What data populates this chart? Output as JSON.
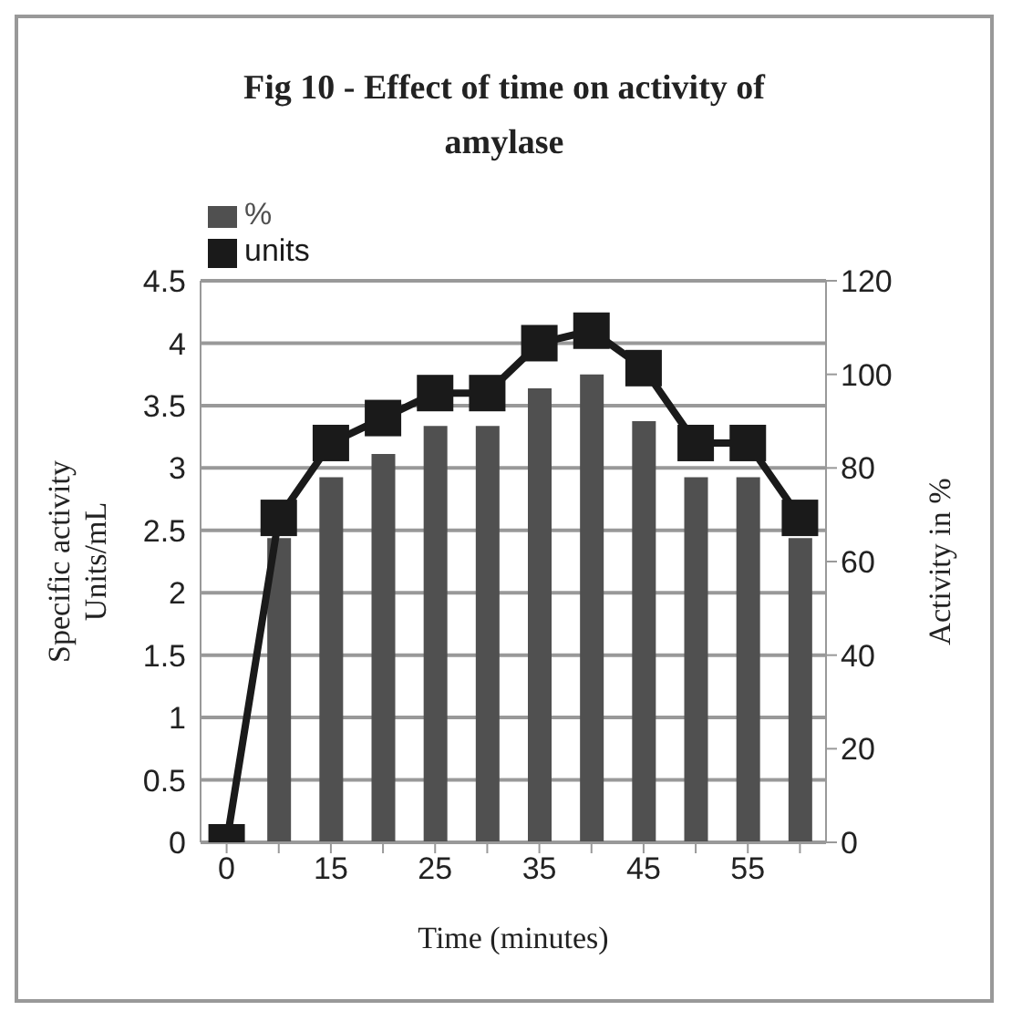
{
  "chart_data": {
    "type": "bar",
    "title": "Fig 10 - Effect of time on activity of amylase",
    "xlabel": "Time (minutes)",
    "ylabel": "Specific activity Units/mL",
    "y2label": "Activity in %",
    "categories": [
      "0",
      null,
      "15",
      null,
      "25",
      null,
      "35",
      null,
      "45",
      null,
      "55",
      null
    ],
    "series": [
      {
        "name": "%",
        "axis": "y2",
        "color": "#505050",
        "values": [
          0,
          65,
          78,
          83,
          89,
          89,
          97,
          100,
          90,
          78,
          78,
          65
        ]
      },
      {
        "name": "units",
        "type": "line",
        "color": "#1a1a1a",
        "marker": "square",
        "values": [
          0,
          2.6,
          3.2,
          3.4,
          3.6,
          3.6,
          4.0,
          4.1,
          3.8,
          3.2,
          3.2,
          2.6
        ]
      }
    ],
    "ylim": [
      0,
      4.5
    ],
    "yticks": [
      0,
      0.5,
      1,
      1.5,
      2,
      2.5,
      3,
      3.5,
      4,
      4.5
    ],
    "y2lim": [
      0,
      120
    ],
    "y2ticks": [
      0,
      20,
      40,
      60,
      80,
      100,
      120
    ],
    "grid": "y",
    "legend": "top left"
  }
}
